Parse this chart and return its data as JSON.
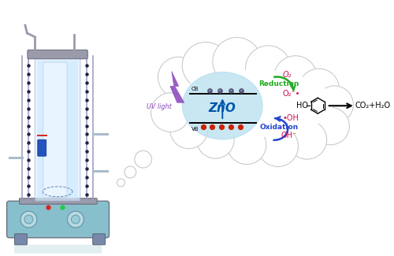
{
  "bg_color": "#ffffff",
  "cloud_color": "#ffffff",
  "cloud_edge": "#c8c8c8",
  "zno_bg_color": "#b8dff0",
  "cb_label": "CB",
  "vb_label": "VB",
  "zno_label": "ZnO",
  "uv_label": "UV light",
  "o2_label": "O₂",
  "o2rad_label": "O₂⁻•",
  "reduction_label": "Reduction",
  "oh_label": "•OH",
  "oxidation_label": "Oxidation",
  "ohm_label": "OH⁻",
  "product_label": "CO₂+H₂O",
  "phenol_ho": "HO",
  "green_color": "#22aa22",
  "blue_color": "#2244cc",
  "pink_color": "#cc1155",
  "purple_color": "#8844bb",
  "base_color": "#88bfcc",
  "reactor_fill": "#ddeeff",
  "liquid_color": "#c5e8ff",
  "gray_color": "#999aaa",
  "dark_gray": "#666677",
  "knob_color": "#b8dae0",
  "tube_color": "#aabbcc"
}
